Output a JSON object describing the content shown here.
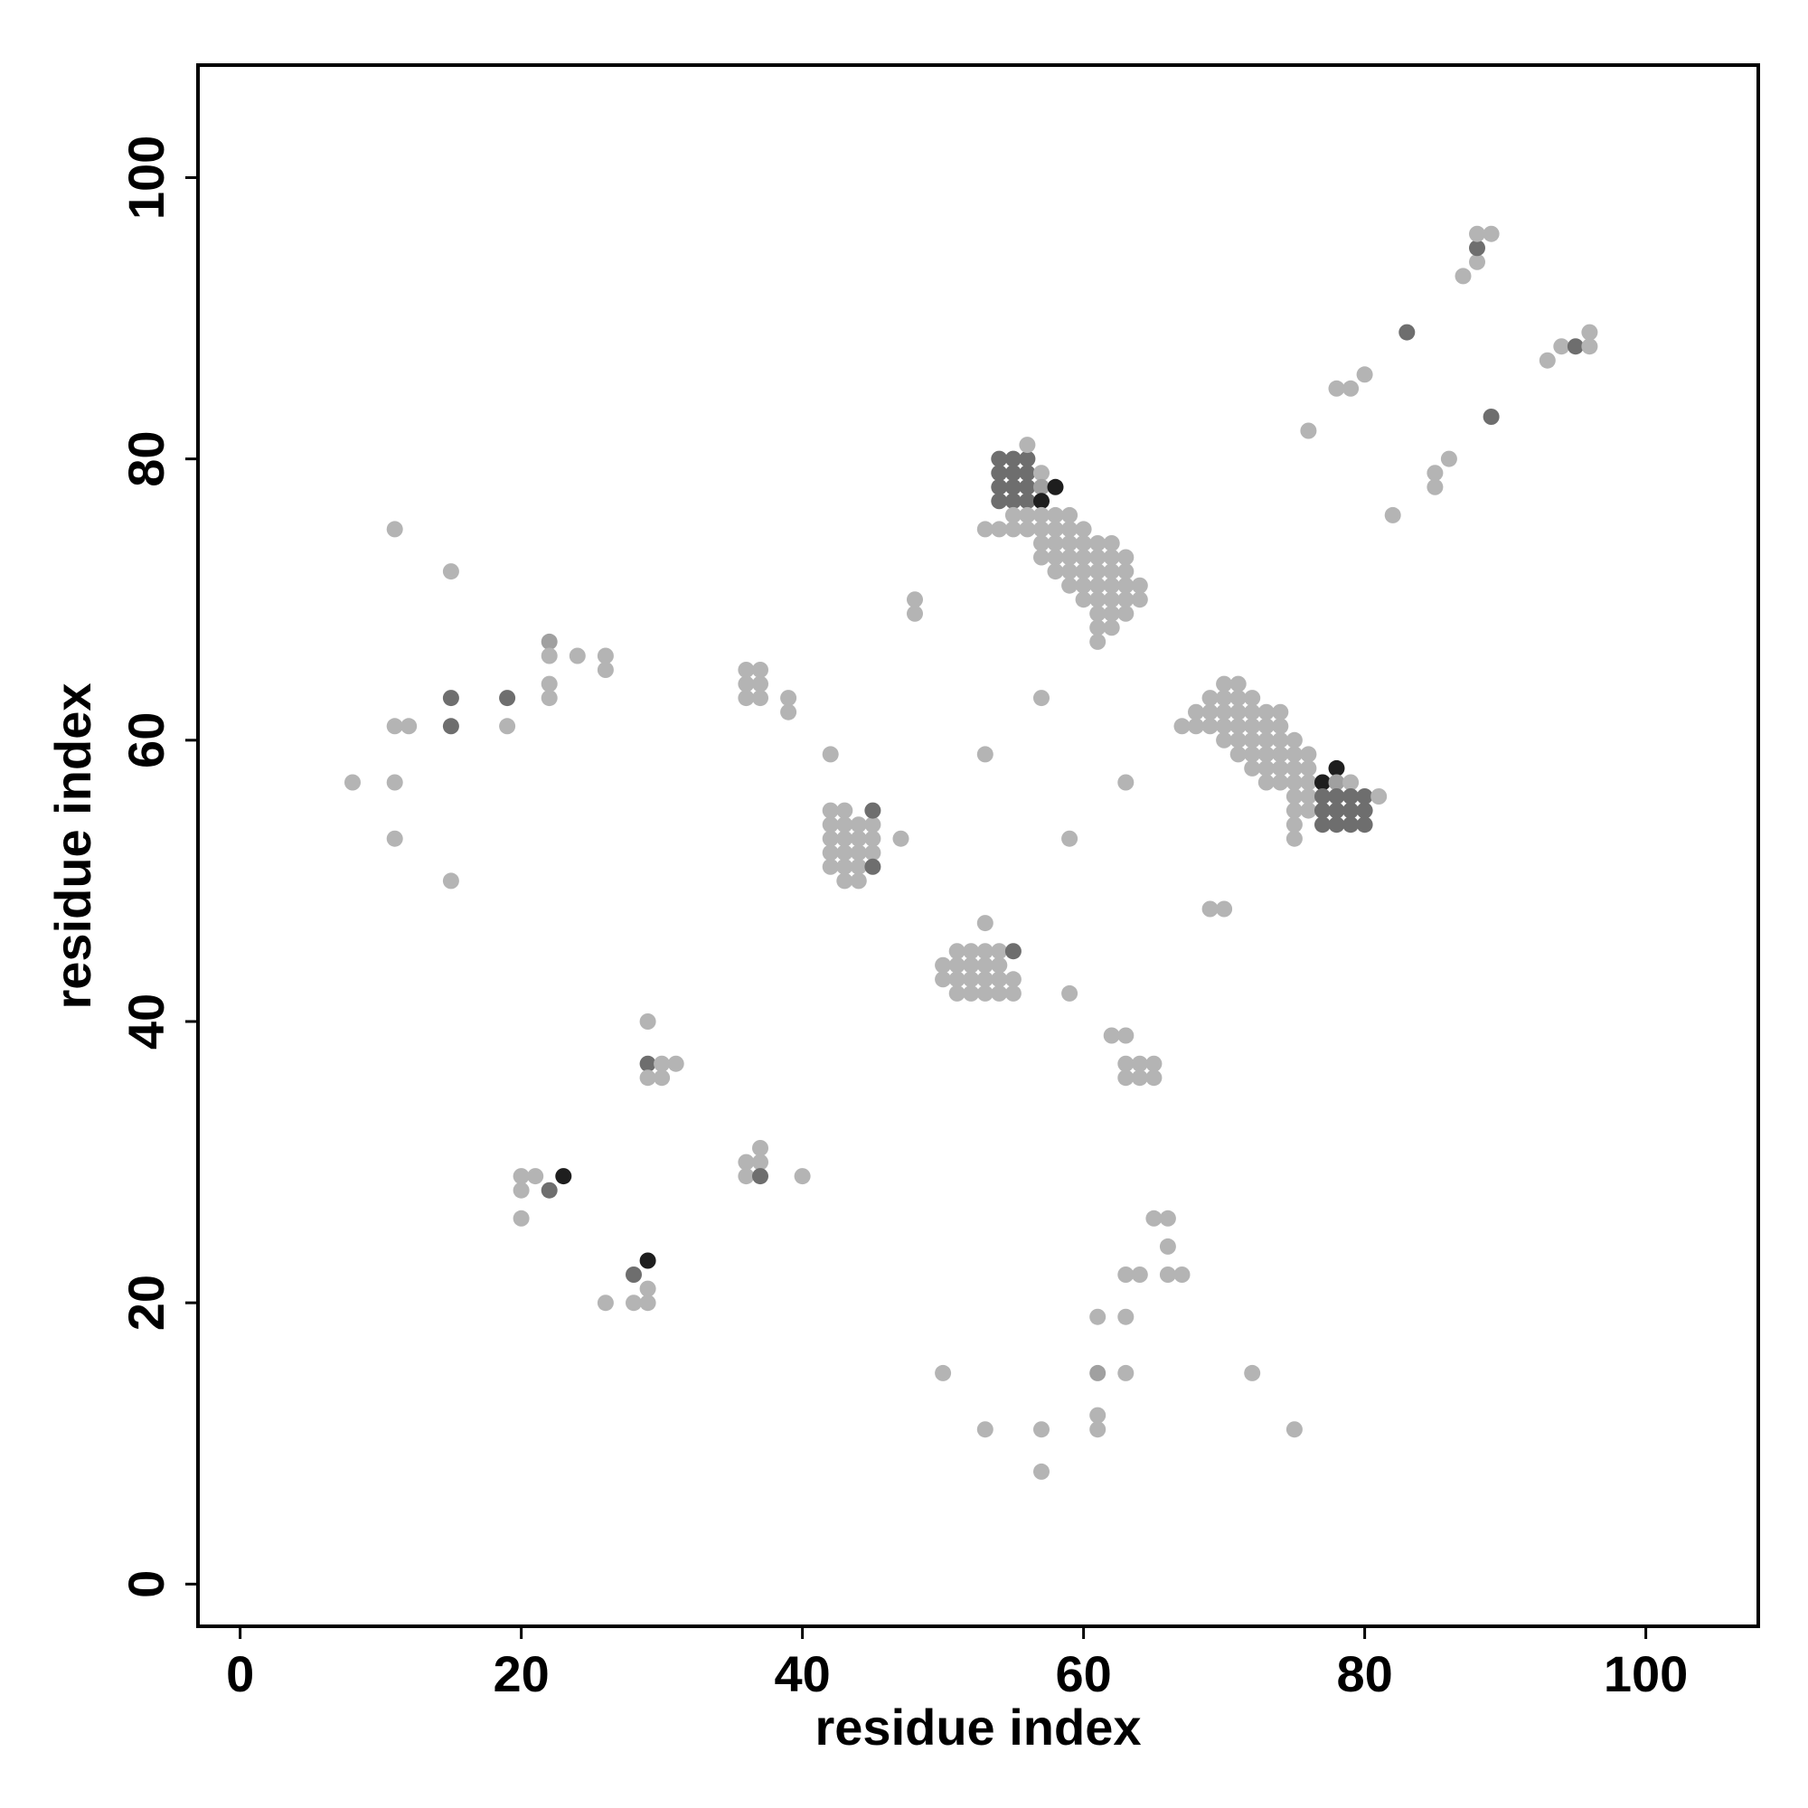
{
  "chart_data": {
    "type": "scatter",
    "title": "",
    "xlabel": "residue index",
    "ylabel": "residue index",
    "xlim": [
      -3,
      108
    ],
    "ylim": [
      -3,
      108
    ],
    "x_ticks": [
      0,
      20,
      40,
      60,
      80,
      100
    ],
    "y_ticks": [
      0,
      20,
      40,
      60,
      80,
      100
    ],
    "x_tick_labels": [
      "0",
      "20",
      "40",
      "60",
      "80",
      "100"
    ],
    "y_tick_labels": [
      "0",
      "20",
      "40",
      "60",
      "80",
      "100"
    ],
    "grid": false,
    "legend": "none",
    "level_colors": {
      "1": "#b4b4b4",
      "2": "#a0a0a0",
      "3": "#6e6e6e",
      "4": "#1e1e1e"
    },
    "point_rows": [
      [
        8,
        57,
        1
      ],
      [
        11,
        75,
        1
      ],
      [
        11,
        61,
        1
      ],
      [
        12,
        61,
        1
      ],
      [
        11,
        57,
        1
      ],
      [
        11,
        53,
        1
      ],
      [
        15,
        72,
        1
      ],
      [
        15,
        63,
        3
      ],
      [
        15,
        61,
        3
      ],
      [
        15,
        50,
        1
      ],
      [
        19,
        63,
        3
      ],
      [
        19,
        61,
        1
      ],
      [
        22,
        67,
        2
      ],
      [
        22,
        66,
        1
      ],
      [
        24,
        66,
        1
      ],
      [
        26,
        66,
        1
      ],
      [
        26,
        65,
        1
      ],
      [
        22,
        64,
        1
      ],
      [
        22,
        63,
        1
      ],
      [
        20,
        29,
        1
      ],
      [
        21,
        29,
        1
      ],
      [
        20,
        28,
        1
      ],
      [
        22,
        28,
        3
      ],
      [
        23,
        29,
        4
      ],
      [
        20,
        26,
        1
      ],
      [
        28,
        22,
        3
      ],
      [
        29,
        23,
        4
      ],
      [
        29,
        21,
        1
      ],
      [
        28,
        20,
        1
      ],
      [
        29,
        20,
        1
      ],
      [
        26,
        20,
        1
      ],
      [
        29,
        40,
        1
      ],
      [
        29,
        37,
        3
      ],
      [
        30,
        37,
        1
      ],
      [
        31,
        37,
        1
      ],
      [
        29,
        36,
        1
      ],
      [
        30,
        36,
        1
      ],
      [
        36,
        65,
        1
      ],
      [
        37,
        65,
        1
      ],
      [
        36,
        64,
        1
      ],
      [
        37,
        64,
        1
      ],
      [
        36,
        63,
        1
      ],
      [
        37,
        63,
        1
      ],
      [
        39,
        63,
        1
      ],
      [
        39,
        62,
        1
      ],
      [
        36,
        30,
        1
      ],
      [
        37,
        31,
        1
      ],
      [
        37,
        30,
        1
      ],
      [
        36,
        29,
        1
      ],
      [
        37,
        29,
        3
      ],
      [
        40,
        29,
        1
      ],
      [
        42,
        59,
        1
      ],
      [
        42,
        55,
        1
      ],
      [
        43,
        55,
        1
      ],
      [
        42,
        54,
        1
      ],
      [
        43,
        54,
        1
      ],
      [
        44,
        54,
        1
      ],
      [
        45,
        54,
        1
      ],
      [
        42,
        53,
        1
      ],
      [
        43,
        53,
        1
      ],
      [
        44,
        53,
        1
      ],
      [
        45,
        53,
        1
      ],
      [
        42,
        52,
        1
      ],
      [
        43,
        52,
        1
      ],
      [
        44,
        52,
        1
      ],
      [
        45,
        52,
        1
      ],
      [
        42,
        51,
        1
      ],
      [
        43,
        51,
        1
      ],
      [
        44,
        51,
        1
      ],
      [
        45,
        51,
        3
      ],
      [
        43,
        50,
        1
      ],
      [
        44,
        50,
        1
      ],
      [
        45,
        55,
        3
      ],
      [
        47,
        53,
        1
      ],
      [
        48,
        70,
        1
      ],
      [
        48,
        69,
        1
      ],
      [
        54,
        80,
        3
      ],
      [
        55,
        80,
        3
      ],
      [
        56,
        80,
        3
      ],
      [
        56,
        81,
        1
      ],
      [
        54,
        79,
        3
      ],
      [
        55,
        79,
        3
      ],
      [
        56,
        79,
        3
      ],
      [
        57,
        79,
        1
      ],
      [
        54,
        78,
        3
      ],
      [
        55,
        78,
        3
      ],
      [
        56,
        78,
        3
      ],
      [
        57,
        78,
        2
      ],
      [
        58,
        78,
        4
      ],
      [
        54,
        77,
        3
      ],
      [
        55,
        77,
        3
      ],
      [
        56,
        77,
        3
      ],
      [
        57,
        77,
        4
      ],
      [
        55,
        76,
        1
      ],
      [
        56,
        76,
        1
      ],
      [
        57,
        76,
        1
      ],
      [
        58,
        76,
        1
      ],
      [
        59,
        76,
        1
      ],
      [
        53,
        75,
        1
      ],
      [
        54,
        75,
        1
      ],
      [
        55,
        75,
        1
      ],
      [
        56,
        75,
        1
      ],
      [
        57,
        75,
        1
      ],
      [
        58,
        75,
        1
      ],
      [
        59,
        75,
        1
      ],
      [
        60,
        75,
        1
      ],
      [
        57,
        74,
        1
      ],
      [
        58,
        74,
        1
      ],
      [
        59,
        74,
        1
      ],
      [
        60,
        74,
        1
      ],
      [
        61,
        74,
        1
      ],
      [
        62,
        74,
        1
      ],
      [
        57,
        73,
        1
      ],
      [
        58,
        73,
        1
      ],
      [
        59,
        73,
        1
      ],
      [
        60,
        73,
        1
      ],
      [
        61,
        73,
        1
      ],
      [
        62,
        73,
        1
      ],
      [
        63,
        73,
        1
      ],
      [
        58,
        72,
        1
      ],
      [
        59,
        72,
        1
      ],
      [
        60,
        72,
        1
      ],
      [
        61,
        72,
        1
      ],
      [
        62,
        72,
        1
      ],
      [
        63,
        72,
        1
      ],
      [
        59,
        71,
        1
      ],
      [
        60,
        71,
        1
      ],
      [
        61,
        71,
        1
      ],
      [
        62,
        71,
        1
      ],
      [
        63,
        71,
        1
      ],
      [
        64,
        71,
        1
      ],
      [
        60,
        70,
        1
      ],
      [
        61,
        70,
        1
      ],
      [
        62,
        70,
        1
      ],
      [
        63,
        70,
        1
      ],
      [
        64,
        70,
        1
      ],
      [
        61,
        69,
        1
      ],
      [
        62,
        69,
        1
      ],
      [
        63,
        69,
        1
      ],
      [
        61,
        68,
        1
      ],
      [
        62,
        68,
        1
      ],
      [
        61,
        67,
        1
      ],
      [
        57,
        63,
        1
      ],
      [
        53,
        59,
        1
      ],
      [
        59,
        53,
        1
      ],
      [
        63,
        57,
        1
      ],
      [
        67,
        61,
        1
      ],
      [
        68,
        62,
        1
      ],
      [
        68,
        61,
        1
      ],
      [
        69,
        63,
        1
      ],
      [
        69,
        62,
        1
      ],
      [
        69,
        61,
        1
      ],
      [
        70,
        64,
        1
      ],
      [
        70,
        63,
        1
      ],
      [
        70,
        62,
        1
      ],
      [
        70,
        61,
        1
      ],
      [
        70,
        60,
        1
      ],
      [
        71,
        64,
        1
      ],
      [
        71,
        63,
        1
      ],
      [
        71,
        62,
        1
      ],
      [
        71,
        61,
        1
      ],
      [
        71,
        60,
        1
      ],
      [
        71,
        59,
        1
      ],
      [
        72,
        63,
        1
      ],
      [
        72,
        62,
        1
      ],
      [
        72,
        61,
        1
      ],
      [
        72,
        60,
        1
      ],
      [
        72,
        59,
        1
      ],
      [
        72,
        58,
        1
      ],
      [
        73,
        62,
        1
      ],
      [
        73,
        61,
        1
      ],
      [
        73,
        60,
        1
      ],
      [
        73,
        59,
        1
      ],
      [
        73,
        58,
        1
      ],
      [
        73,
        57,
        1
      ],
      [
        74,
        62,
        1
      ],
      [
        74,
        61,
        1
      ],
      [
        74,
        60,
        1
      ],
      [
        74,
        59,
        1
      ],
      [
        74,
        58,
        1
      ],
      [
        74,
        57,
        1
      ],
      [
        75,
        60,
        1
      ],
      [
        75,
        59,
        1
      ],
      [
        75,
        58,
        1
      ],
      [
        75,
        57,
        1
      ],
      [
        75,
        56,
        1
      ],
      [
        75,
        55,
        1
      ],
      [
        75,
        54,
        1
      ],
      [
        75,
        53,
        1
      ],
      [
        76,
        59,
        1
      ],
      [
        76,
        58,
        1
      ],
      [
        76,
        57,
        1
      ],
      [
        76,
        56,
        1
      ],
      [
        76,
        55,
        1
      ],
      [
        77,
        57,
        4
      ],
      [
        78,
        58,
        4
      ],
      [
        77,
        56,
        3
      ],
      [
        78,
        57,
        2
      ],
      [
        79,
        57,
        1
      ],
      [
        77,
        55,
        3
      ],
      [
        78,
        55,
        3
      ],
      [
        79,
        55,
        3
      ],
      [
        80,
        55,
        3
      ],
      [
        77,
        54,
        3
      ],
      [
        78,
        54,
        3
      ],
      [
        79,
        54,
        3
      ],
      [
        80,
        54,
        3
      ],
      [
        78,
        56,
        3
      ],
      [
        79,
        56,
        3
      ],
      [
        80,
        56,
        3
      ],
      [
        81,
        56,
        1
      ],
      [
        50,
        44,
        1
      ],
      [
        51,
        45,
        1
      ],
      [
        52,
        45,
        1
      ],
      [
        53,
        45,
        1
      ],
      [
        54,
        45,
        1
      ],
      [
        51,
        44,
        1
      ],
      [
        52,
        44,
        1
      ],
      [
        53,
        44,
        1
      ],
      [
        54,
        44,
        1
      ],
      [
        50,
        43,
        1
      ],
      [
        51,
        43,
        1
      ],
      [
        52,
        43,
        1
      ],
      [
        53,
        43,
        1
      ],
      [
        54,
        43,
        1
      ],
      [
        55,
        43,
        1
      ],
      [
        51,
        42,
        1
      ],
      [
        52,
        42,
        1
      ],
      [
        53,
        42,
        1
      ],
      [
        54,
        42,
        1
      ],
      [
        55,
        42,
        1
      ],
      [
        53,
        47,
        1
      ],
      [
        55,
        45,
        3
      ],
      [
        59,
        42,
        1
      ],
      [
        69,
        48,
        1
      ],
      [
        70,
        48,
        1
      ],
      [
        62,
        39,
        1
      ],
      [
        63,
        39,
        1
      ],
      [
        63,
        37,
        1
      ],
      [
        64,
        37,
        1
      ],
      [
        65,
        37,
        1
      ],
      [
        63,
        36,
        1
      ],
      [
        64,
        36,
        1
      ],
      [
        65,
        36,
        1
      ],
      [
        65,
        26,
        1
      ],
      [
        66,
        26,
        1
      ],
      [
        66,
        24,
        1
      ],
      [
        63,
        22,
        1
      ],
      [
        64,
        22,
        1
      ],
      [
        66,
        22,
        1
      ],
      [
        67,
        22,
        1
      ],
      [
        61,
        19,
        1
      ],
      [
        63,
        19,
        1
      ],
      [
        61,
        15,
        2
      ],
      [
        63,
        15,
        1
      ],
      [
        72,
        15,
        1
      ],
      [
        50,
        15,
        1
      ],
      [
        61,
        12,
        1
      ],
      [
        61,
        11,
        1
      ],
      [
        53,
        11,
        1
      ],
      [
        57,
        11,
        1
      ],
      [
        75,
        11,
        1
      ],
      [
        57,
        8,
        1
      ],
      [
        76,
        82,
        1
      ],
      [
        78,
        85,
        1
      ],
      [
        79,
        85,
        1
      ],
      [
        80,
        86,
        1
      ],
      [
        82,
        76,
        1
      ],
      [
        85,
        79,
        1
      ],
      [
        85,
        78,
        1
      ],
      [
        86,
        80,
        1
      ],
      [
        83,
        89,
        3
      ],
      [
        89,
        83,
        3
      ],
      [
        87,
        93,
        1
      ],
      [
        88,
        94,
        1
      ],
      [
        88,
        95,
        3
      ],
      [
        88,
        96,
        1
      ],
      [
        89,
        96,
        1
      ],
      [
        93,
        87,
        1
      ],
      [
        94,
        88,
        1
      ],
      [
        95,
        88,
        3
      ],
      [
        96,
        88,
        1
      ],
      [
        96,
        89,
        1
      ]
    ]
  }
}
